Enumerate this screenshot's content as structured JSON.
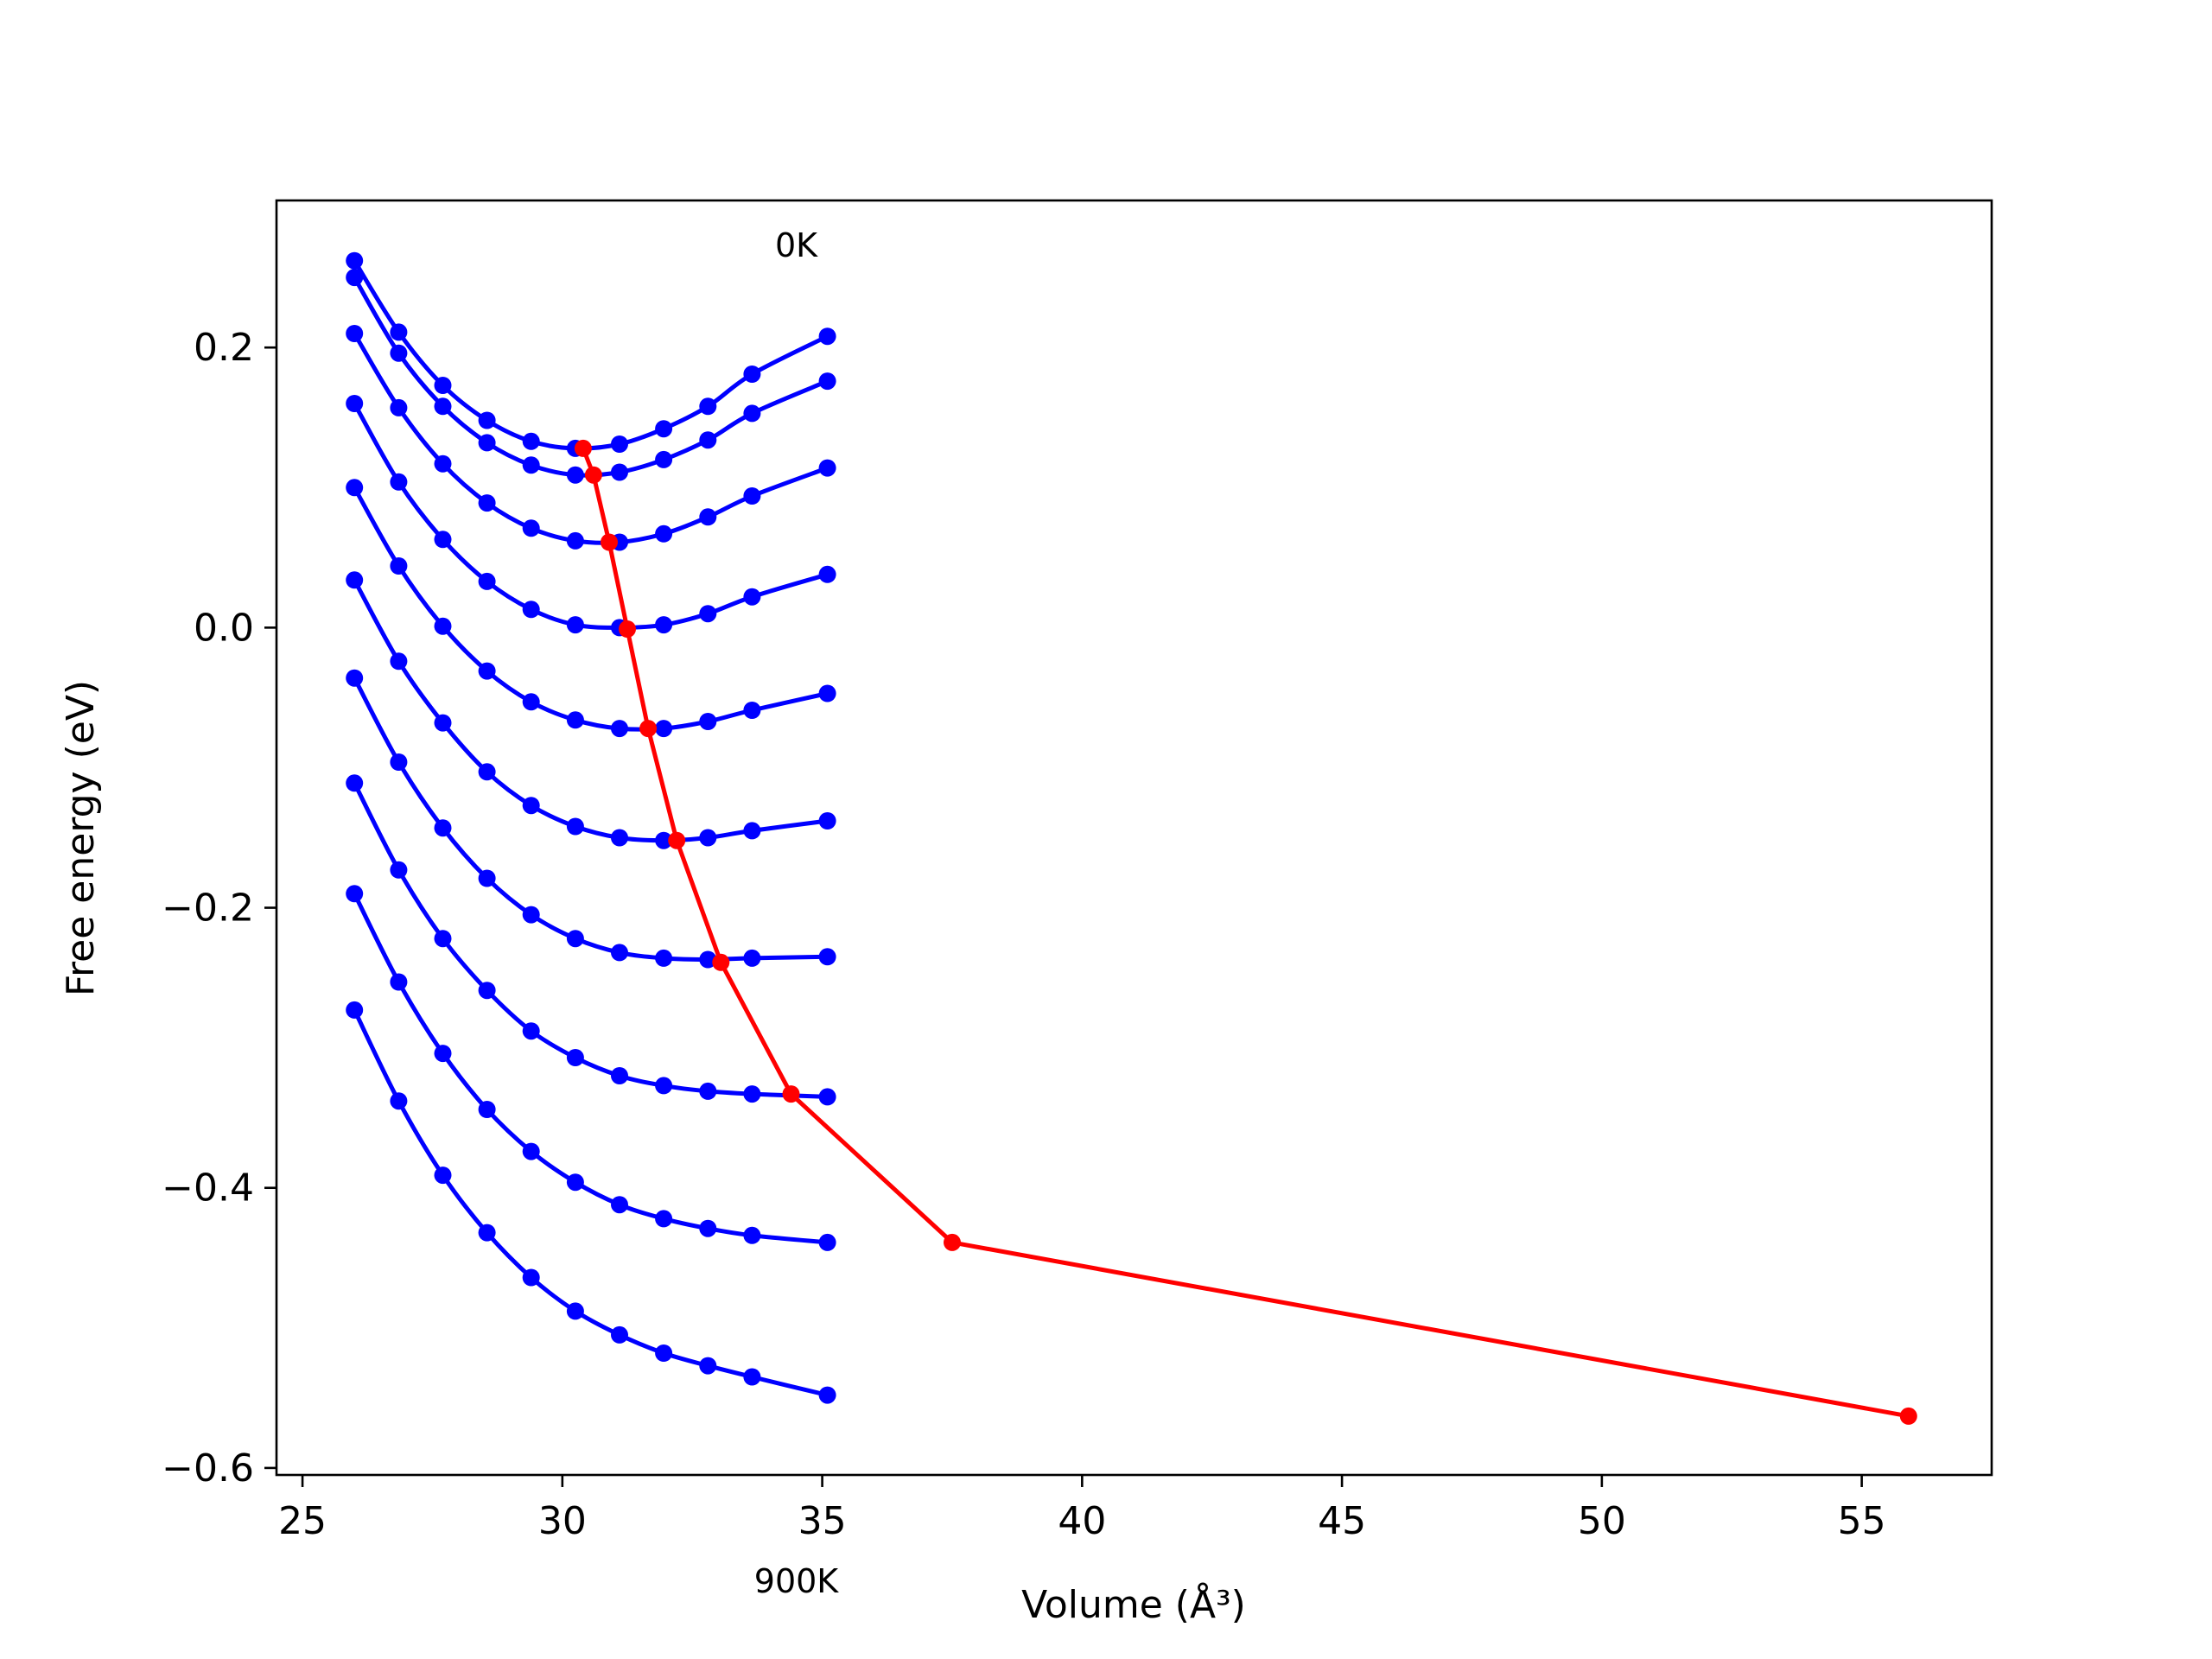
{
  "chart_data": {
    "type": "line",
    "xlabel": "Volume (Å³)",
    "ylabel": "Free energy (eV)",
    "xlim": [
      24.5,
      57.5
    ],
    "ylim": [
      -0.605,
      0.305
    ],
    "xticks": [
      25,
      30,
      35,
      40,
      45,
      50,
      55
    ],
    "yticks": [
      -0.6,
      -0.4,
      -0.2,
      0.0,
      0.2
    ],
    "xtick_labels": [
      "25",
      "30",
      "35",
      "40",
      "45",
      "50",
      "55"
    ],
    "ytick_labels": [
      "−0.6",
      "−0.4",
      "−0.2",
      "0.0",
      "0.2"
    ],
    "grid": false,
    "annotations": [
      {
        "text": "0K",
        "x": 34.5,
        "y": 0.265
      },
      {
        "text": "900K",
        "x": 34.5,
        "y": -0.689
      }
    ],
    "x": [
      26.0,
      26.85,
      27.7,
      28.55,
      29.4,
      30.25,
      31.1,
      31.95,
      32.8,
      33.65,
      35.1
    ],
    "series": [
      {
        "values": [
          0.262,
          0.211,
          0.173,
          0.148,
          0.133,
          0.128,
          0.131,
          0.142,
          0.158,
          0.181,
          0.208
        ]
      },
      {
        "values": [
          0.25,
          0.196,
          0.158,
          0.132,
          0.116,
          0.109,
          0.111,
          0.12,
          0.134,
          0.153,
          0.176
        ]
      },
      {
        "values": [
          0.21,
          0.157,
          0.117,
          0.089,
          0.071,
          0.062,
          0.061,
          0.067,
          0.079,
          0.094,
          0.114
        ]
      },
      {
        "values": [
          0.16,
          0.104,
          0.063,
          0.033,
          0.013,
          0.002,
          0.0,
          0.002,
          0.01,
          0.022,
          0.038
        ]
      },
      {
        "values": [
          0.1,
          0.044,
          0.001,
          -0.031,
          -0.053,
          -0.066,
          -0.072,
          -0.072,
          -0.067,
          -0.059,
          -0.047
        ]
      },
      {
        "values": [
          0.034,
          -0.024,
          -0.068,
          -0.103,
          -0.127,
          -0.142,
          -0.15,
          -0.152,
          -0.15,
          -0.145,
          -0.138
        ]
      },
      {
        "values": [
          -0.036,
          -0.096,
          -0.143,
          -0.179,
          -0.205,
          -0.222,
          -0.232,
          -0.236,
          -0.237,
          -0.236,
          -0.235
        ]
      },
      {
        "values": [
          -0.111,
          -0.173,
          -0.222,
          -0.259,
          -0.288,
          -0.307,
          -0.32,
          -0.327,
          -0.331,
          -0.333,
          -0.335
        ]
      },
      {
        "values": [
          -0.19,
          -0.253,
          -0.304,
          -0.344,
          -0.374,
          -0.396,
          -0.412,
          -0.422,
          -0.429,
          -0.434,
          -0.439
        ]
      },
      {
        "values": [
          -0.273,
          -0.338,
          -0.391,
          -0.432,
          -0.464,
          -0.488,
          -0.505,
          -0.518,
          -0.527,
          -0.535,
          -0.548
        ]
      }
    ],
    "min_curve": {
      "x": [
        30.4,
        30.6,
        30.9,
        31.25,
        31.65,
        32.2,
        33.05,
        34.4,
        37.5,
        55.9
      ],
      "y": [
        0.128,
        0.109,
        0.061,
        -0.001,
        -0.072,
        -0.152,
        -0.239,
        -0.333,
        -0.439,
        -0.563
      ]
    },
    "colors": {
      "series": "#0000ff",
      "min_curve": "#ff0000",
      "axes": "#000000"
    }
  }
}
